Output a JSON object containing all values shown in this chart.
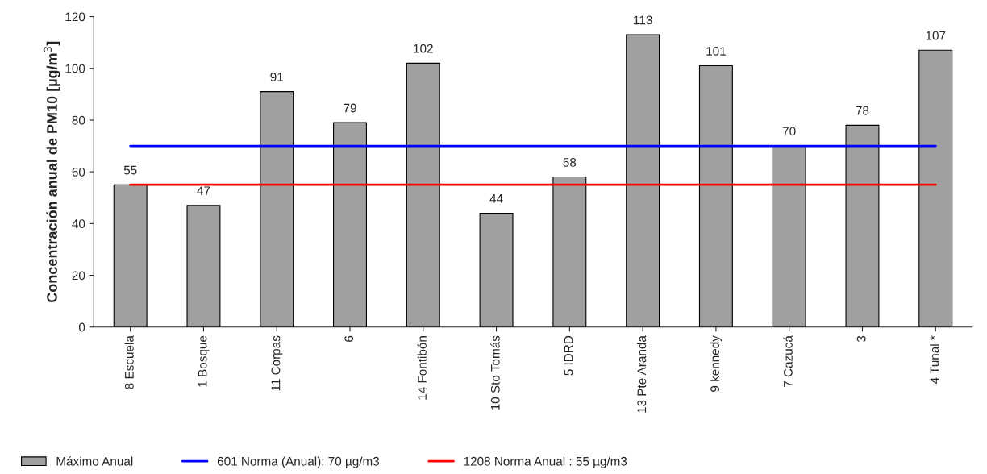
{
  "chart_data": {
    "type": "bar",
    "ylabel": "Concentración anual de PM10 [µg/m$^{3}$]",
    "categories": [
      "8 Escuela",
      "1 Bosque",
      "11 Corpas",
      "6",
      "14 Fontibón",
      "10 Sto Tomás",
      "5 IDRD",
      "13 Pte Aranda",
      "9 kennedy",
      "7 Cazucá",
      "3",
      "4 Tunal *"
    ],
    "series": [
      {
        "name": "Máximo Anual",
        "color": "#a0a0a0",
        "values": [
          55,
          47,
          91,
          79,
          102,
          44,
          58,
          113,
          101,
          70,
          78,
          107
        ],
        "value_labels": [
          "55",
          "47",
          "91",
          "79",
          "102",
          "44",
          "58",
          "113",
          "101",
          "70",
          "78",
          "107"
        ]
      },
      {
        "name": "601 Norma (Anual): 70 µg/m3",
        "type": "line",
        "color": "#0000ff",
        "values": [
          70,
          70,
          70,
          70,
          70,
          70,
          70,
          70,
          70,
          70,
          70,
          70
        ]
      },
      {
        "name": "1208 Norma Anual : 55 µg/m3",
        "type": "line",
        "color": "#ff0000",
        "values": [
          55,
          55,
          55,
          55,
          55,
          55,
          55,
          55,
          55,
          55,
          55,
          55
        ]
      }
    ],
    "ylim": [
      0,
      120
    ],
    "yticks": [
      0,
      20,
      40,
      60,
      80,
      100,
      120
    ],
    "grid": false,
    "legend": "bottom left"
  }
}
